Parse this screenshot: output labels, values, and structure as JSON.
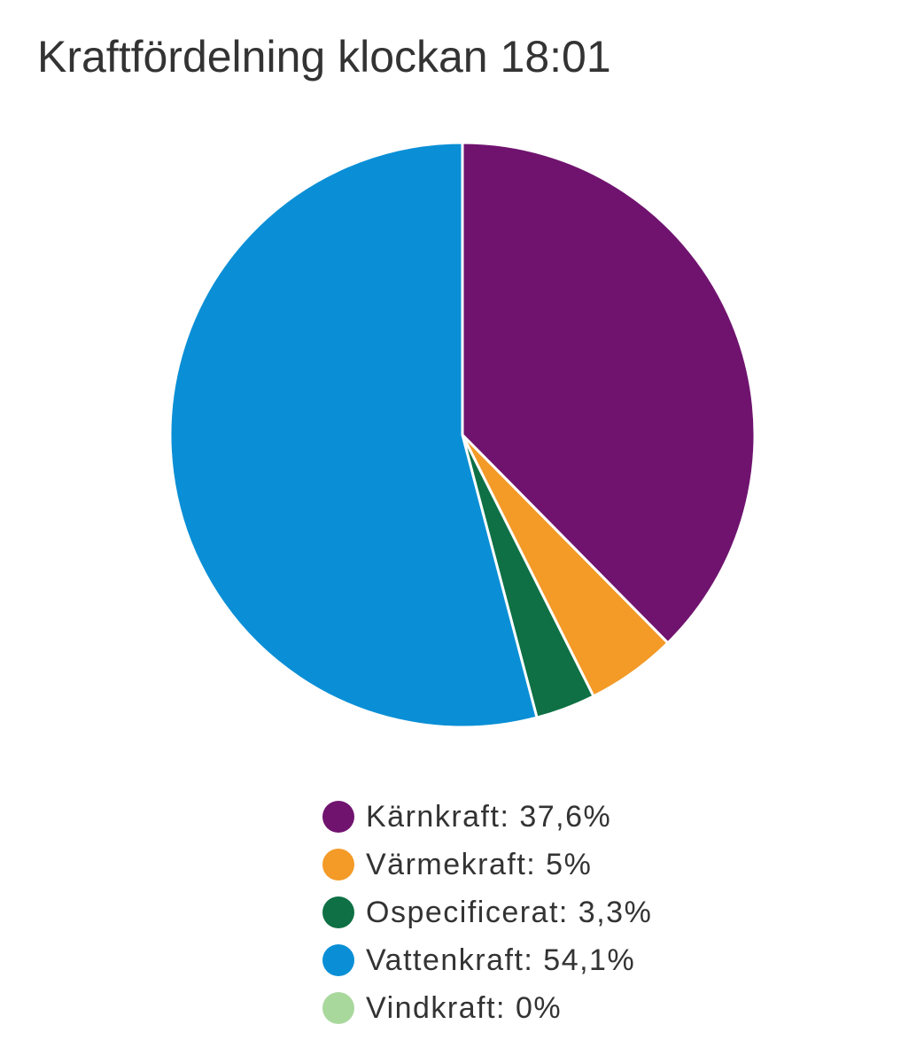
{
  "chart_data": {
    "type": "pie",
    "title": "Kraftfördelning klockan 18:01",
    "categories": [
      "Kärnkraft: 37,6%",
      "Värmekraft: 5%",
      "Ospecificerat: 3,3%",
      "Vattenkraft: 54,1%",
      "Vindkraft: 0%"
    ],
    "values": [
      37.6,
      5,
      3.3,
      54.1,
      0
    ],
    "colors": [
      "#70136f",
      "#f39a27",
      "#0e7044",
      "#0a8fd6",
      "#a9d89d"
    ]
  }
}
